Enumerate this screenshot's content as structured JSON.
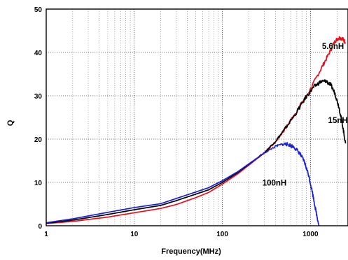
{
  "chart_data": {
    "type": "line",
    "title": "",
    "xlabel": "Frequency(MHz)",
    "ylabel": "Q",
    "x_scale": "log",
    "xlim": [
      1,
      2500
    ],
    "ylim": [
      0,
      50
    ],
    "grid": true,
    "x_ticks": [
      {
        "value": 1,
        "label": "1"
      },
      {
        "value": 10,
        "label": "10"
      },
      {
        "value": 100,
        "label": "100"
      },
      {
        "value": 1000,
        "label": "1000"
      }
    ],
    "y_ticks": [
      {
        "value": 0,
        "label": "0"
      },
      {
        "value": 10,
        "label": "10"
      },
      {
        "value": 20,
        "label": "20"
      },
      {
        "value": 30,
        "label": "30"
      },
      {
        "value": 40,
        "label": "40"
      },
      {
        "value": 50,
        "label": "50"
      }
    ],
    "series": [
      {
        "name": "5.6nH",
        "color": "#e8101a",
        "label_at": [
          1800,
          40.8
        ],
        "points": [
          [
            1,
            0.5
          ],
          [
            2,
            1.0
          ],
          [
            5,
            2.0
          ],
          [
            10,
            3.0
          ],
          [
            20,
            4.0
          ],
          [
            30,
            4.9
          ],
          [
            50,
            6.5
          ],
          [
            70,
            7.7
          ],
          [
            100,
            9.6
          ],
          [
            150,
            12.0
          ],
          [
            200,
            14.0
          ],
          [
            300,
            16.8
          ],
          [
            400,
            19.3
          ],
          [
            500,
            22.0
          ],
          [
            700,
            26.5
          ],
          [
            1000,
            31.5
          ],
          [
            1300,
            36.0
          ],
          [
            1600,
            39.5
          ],
          [
            1900,
            42.6
          ],
          [
            2100,
            43.4
          ],
          [
            2300,
            43.2
          ],
          [
            2500,
            42.3
          ]
        ]
      },
      {
        "name": "15nH",
        "color": "#000000",
        "label_at": [
          2050,
          23.7
        ],
        "points": [
          [
            1,
            0.6
          ],
          [
            2,
            1.3
          ],
          [
            5,
            2.6
          ],
          [
            10,
            3.7
          ],
          [
            20,
            4.7
          ],
          [
            30,
            5.8
          ],
          [
            50,
            7.3
          ],
          [
            70,
            8.3
          ],
          [
            100,
            10.0
          ],
          [
            150,
            12.3
          ],
          [
            200,
            14.2
          ],
          [
            300,
            16.9
          ],
          [
            400,
            19.5
          ],
          [
            500,
            22.0
          ],
          [
            700,
            26.3
          ],
          [
            900,
            29.8
          ],
          [
            1100,
            32.1
          ],
          [
            1300,
            33.2
          ],
          [
            1500,
            33.4
          ],
          [
            1700,
            32.5
          ],
          [
            1900,
            30.5
          ],
          [
            2100,
            27.5
          ],
          [
            2300,
            23.5
          ],
          [
            2500,
            19.0
          ]
        ]
      },
      {
        "name": "100nH",
        "color": "#1a22d8",
        "label_at": [
          390,
          9.3
        ],
        "points": [
          [
            1,
            0.7
          ],
          [
            2,
            1.6
          ],
          [
            5,
            3.1
          ],
          [
            10,
            4.2
          ],
          [
            20,
            5.1
          ],
          [
            30,
            6.3
          ],
          [
            50,
            7.8
          ],
          [
            70,
            8.8
          ],
          [
            100,
            10.4
          ],
          [
            150,
            12.5
          ],
          [
            200,
            14.3
          ],
          [
            300,
            16.8
          ],
          [
            400,
            18.3
          ],
          [
            500,
            18.9
          ],
          [
            550,
            18.8
          ],
          [
            650,
            18.2
          ],
          [
            750,
            16.8
          ],
          [
            850,
            14.8
          ],
          [
            950,
            11.8
          ],
          [
            1050,
            7.8
          ],
          [
            1150,
            3.5
          ],
          [
            1250,
            0
          ]
        ]
      }
    ]
  }
}
